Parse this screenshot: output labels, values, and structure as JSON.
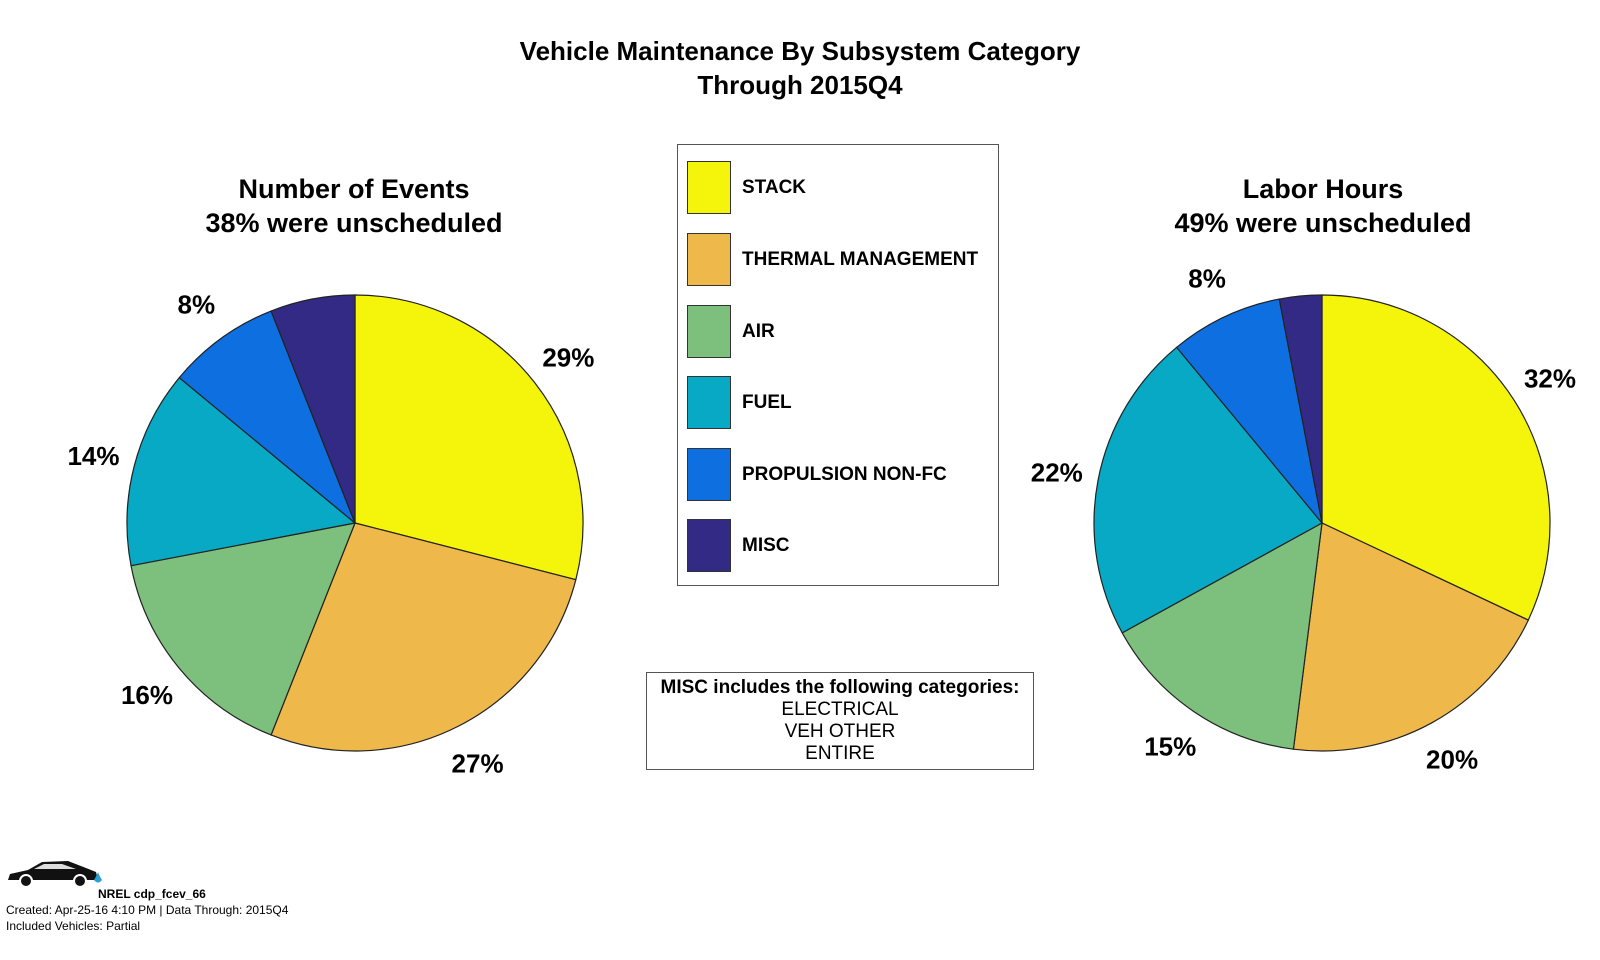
{
  "title": {
    "line1": "Vehicle Maintenance By Subsystem Category",
    "line2": "Through 2015Q4"
  },
  "legend": [
    {
      "label": "STACK",
      "color": "#f5f50c"
    },
    {
      "label": "THERMAL MANAGEMENT",
      "color": "#efb84a"
    },
    {
      "label": "AIR",
      "color": "#7dbf7d"
    },
    {
      "label": "FUEL",
      "color": "#07a9c5"
    },
    {
      "label": "PROPULSION NON-FC",
      "color": "#0e6fe0"
    },
    {
      "label": "MISC",
      "color": "#332a85"
    }
  ],
  "chart_data": [
    {
      "type": "pie",
      "title": "Number of Events",
      "subtitle": "38% were unscheduled",
      "categories": [
        "STACK",
        "THERMAL MANAGEMENT",
        "AIR",
        "FUEL",
        "PROPULSION NON-FC",
        "MISC"
      ],
      "values": [
        29,
        27,
        16,
        14,
        8,
        6
      ],
      "labels": [
        "29%",
        "27%",
        "16%",
        "14%",
        "8%",
        ""
      ]
    },
    {
      "type": "pie",
      "title": "Labor Hours",
      "subtitle": "49% were unscheduled",
      "categories": [
        "STACK",
        "THERMAL MANAGEMENT",
        "AIR",
        "FUEL",
        "PROPULSION NON-FC",
        "MISC"
      ],
      "values": [
        32,
        20,
        15,
        22,
        8,
        3
      ],
      "labels": [
        "32%",
        "20%",
        "15%",
        "22%",
        "8%",
        ""
      ]
    }
  ],
  "misc_note": {
    "heading": "MISC includes the following categories:",
    "items": [
      "ELECTRICAL",
      "VEH OTHER",
      "ENTIRE"
    ]
  },
  "footer": {
    "id": "NREL cdp_fcev_66",
    "created": "Created: Apr-25-16  4:10 PM | Data Through: 2015Q4",
    "included": "Included Vehicles: Partial"
  }
}
